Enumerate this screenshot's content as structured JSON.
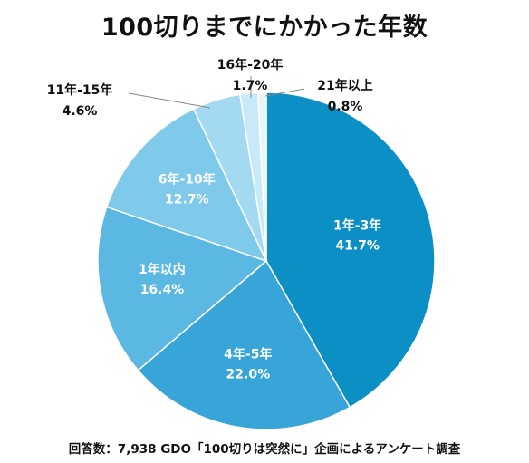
{
  "chart_data": {
    "type": "pie",
    "title": "100切りまでにかかった年数",
    "footnote": "回答数：7,938 GDO「100切りは突然に」企画によるアンケート調査",
    "start_angle_deg": 0,
    "direction": "clockwise",
    "slices": [
      {
        "label": "1年-3年",
        "value": 41.7,
        "value_text": "41.7%",
        "color": "#0c8fc5",
        "label_color": "#ffffff",
        "label_placement": "inside"
      },
      {
        "label": "4年-5年",
        "value": 22.0,
        "value_text": "22.0%",
        "color": "#37a5d8",
        "label_color": "#ffffff",
        "label_placement": "inside"
      },
      {
        "label": "1年以内",
        "value": 16.4,
        "value_text": "16.4%",
        "color": "#5ab8e3",
        "label_color": "#ffffff",
        "label_placement": "inside"
      },
      {
        "label": "6年-10年",
        "value": 12.7,
        "value_text": "12.7%",
        "color": "#7fc9eb",
        "label_color": "#ffffff",
        "label_placement": "inside"
      },
      {
        "label": "11年-15年",
        "value": 4.6,
        "value_text": "4.6%",
        "color": "#a4daf1",
        "label_color": "#111111",
        "label_placement": "outside"
      },
      {
        "label": "16年-20年",
        "value": 1.7,
        "value_text": "1.7%",
        "color": "#c8e9f7",
        "label_color": "#111111",
        "label_placement": "outside"
      },
      {
        "label": "21年以上",
        "value": 0.8,
        "value_text": "0.8%",
        "color": "#e6f5fc",
        "label_color": "#111111",
        "label_placement": "outside"
      }
    ]
  }
}
